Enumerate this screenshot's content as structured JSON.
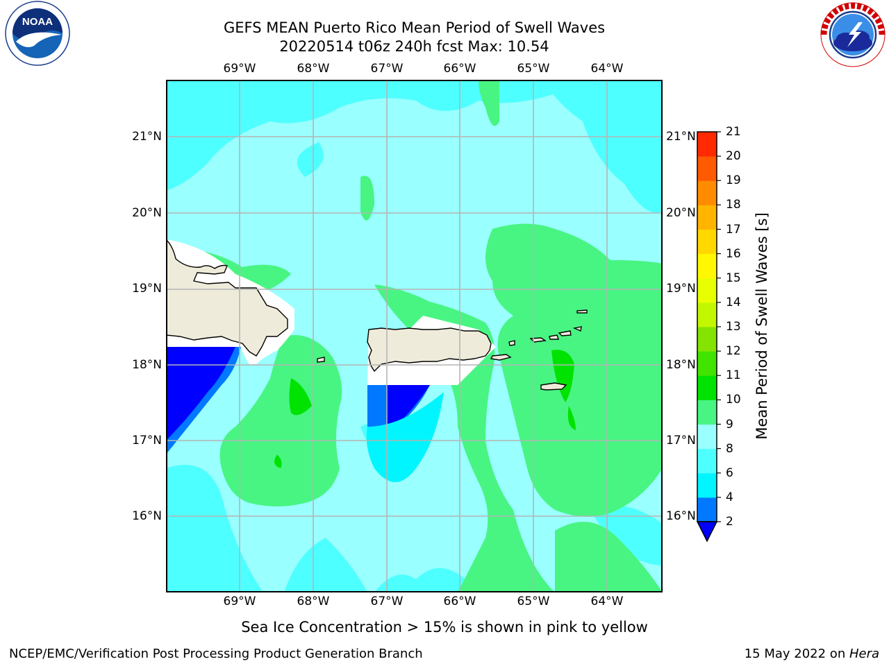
{
  "header": {
    "title_line1": "GEFS MEAN Puerto Rico Mean Period of Swell Waves",
    "title_line2": "20220514 t06z 240h fcst   Max: 10.54"
  },
  "logos": {
    "left": "noaa-logo",
    "left_text": "NOAA",
    "right": "nws-logo",
    "right_text": "NATIONAL WEATHER SERVICE"
  },
  "map": {
    "lon_labels": [
      "69°W",
      "68°W",
      "67°W",
      "66°W",
      "65°W",
      "64°W"
    ],
    "lat_labels": [
      "21°N",
      "20°N",
      "19°N",
      "18°N",
      "17°N",
      "16°N"
    ],
    "extent": {
      "lon": [
        -70,
        -63.25
      ],
      "lat": [
        15,
        21.75
      ]
    },
    "land_color": "#efebda",
    "grid_color": "#b4b4b4"
  },
  "colorbar": {
    "label": "Mean Period of Swell Waves [s]",
    "levels": [
      "2",
      "4",
      "6",
      "8",
      "9",
      "10",
      "11",
      "12",
      "13",
      "14",
      "15",
      "16",
      "17",
      "18",
      "19",
      "20",
      "21"
    ],
    "colors": [
      "#0000ff",
      "#0078ff",
      "#00f5ff",
      "#4effff",
      "#9affff",
      "#48f583",
      "#00e300",
      "#43e300",
      "#84e300",
      "#c3f700",
      "#e8ff00",
      "#fff800",
      "#ffd800",
      "#ffb400",
      "#ff8c00",
      "#ff5a00",
      "#ff2a00",
      "#ff0000"
    ],
    "under_color": "#0000ff"
  },
  "footer": {
    "note": "Sea Ice Concentration > 15% is shown in pink to yellow",
    "left": "NCEP/EMC/Verification Post Processing Product Generation Branch",
    "right_date": "15 May 2022 on ",
    "right_host": "Hera"
  }
}
